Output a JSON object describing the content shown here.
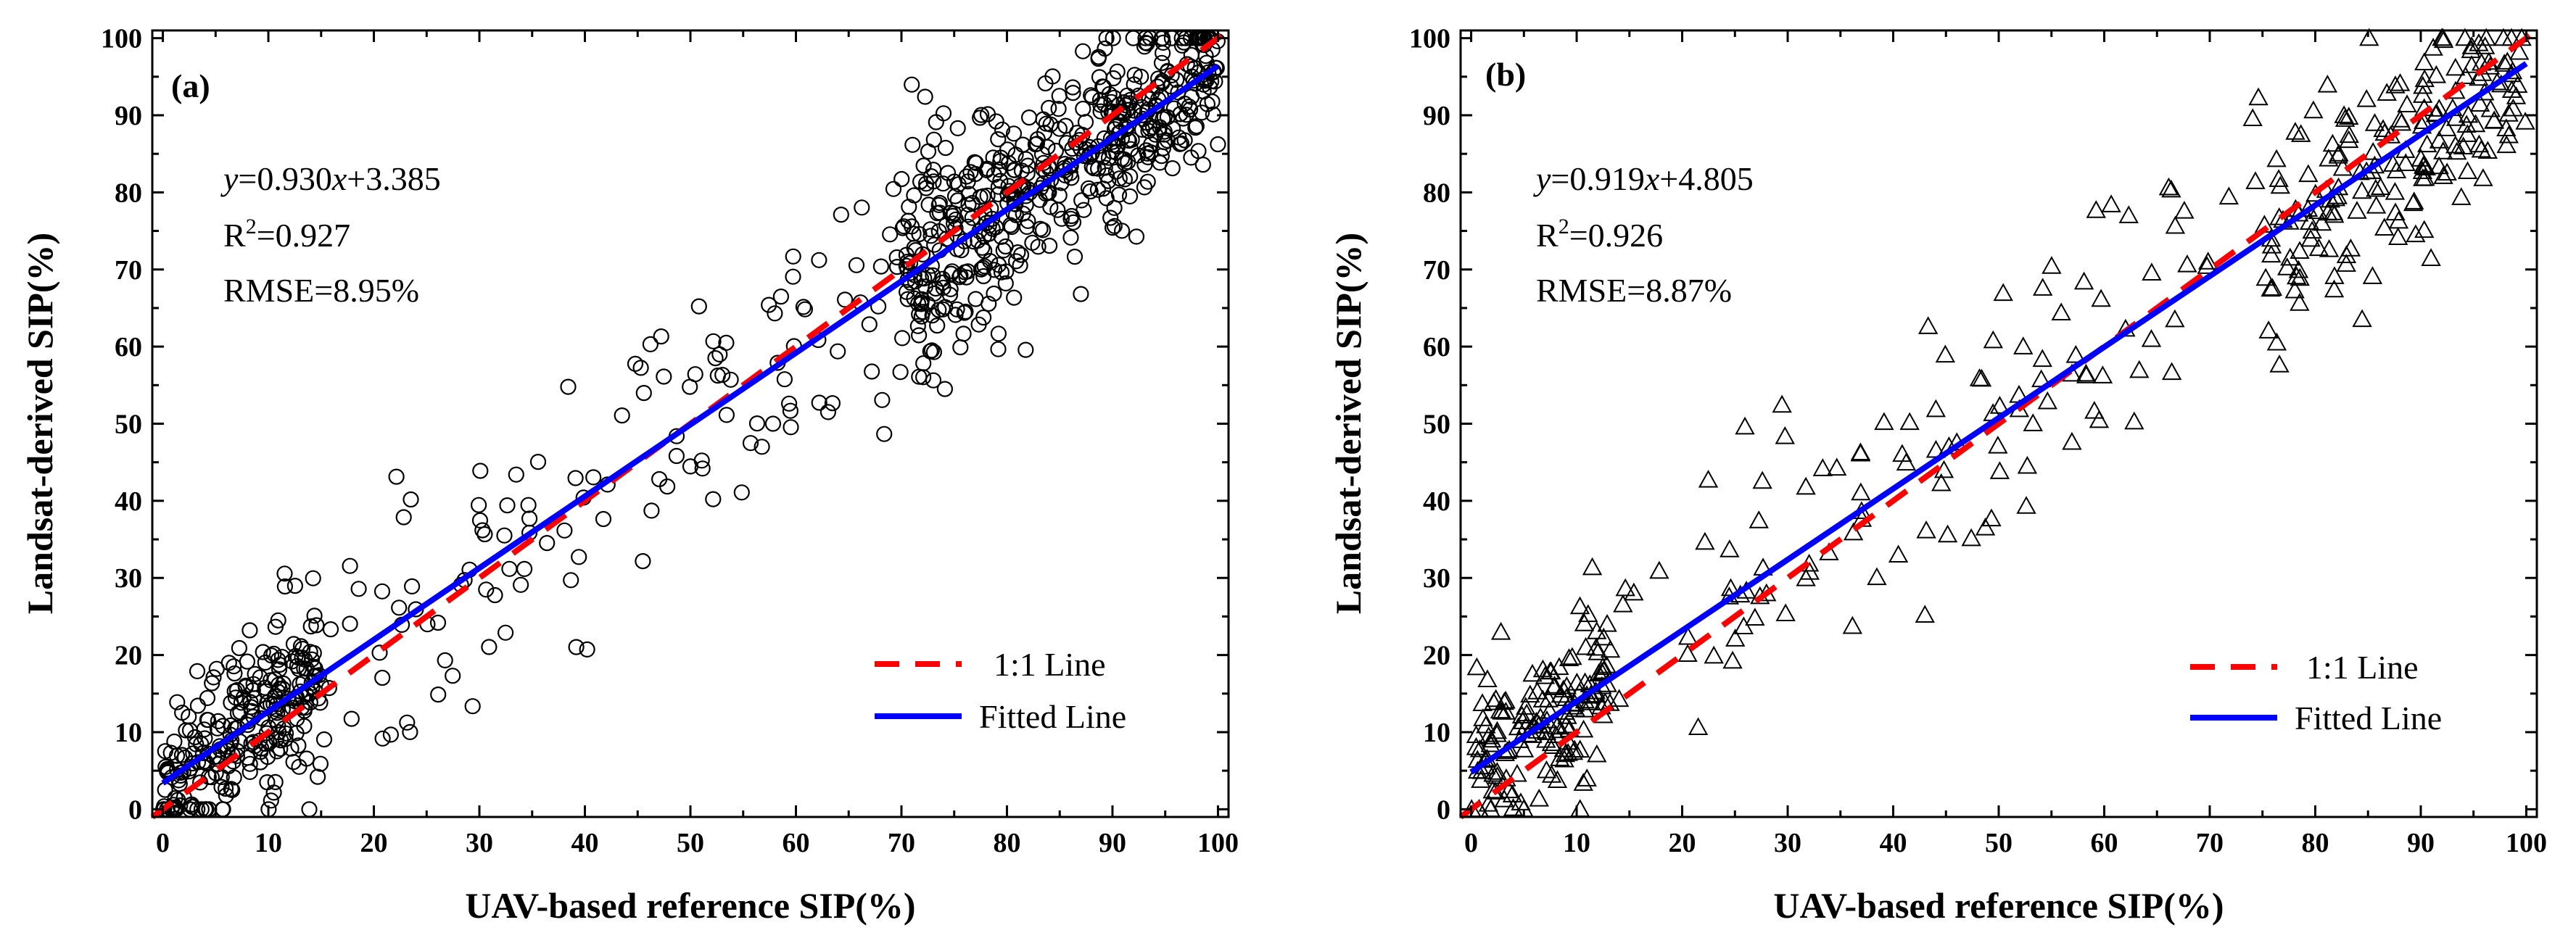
{
  "chart_data": [
    {
      "type": "scatter",
      "panel_label": "(a)",
      "marker": "circle",
      "xlabel": "UAV-based reference SIP(%)",
      "ylabel": "Landsat-derived SIP(%)",
      "xlim": [
        -1,
        101
      ],
      "ylim": [
        -1,
        101
      ],
      "xticks": [
        "0",
        "10",
        "20",
        "30",
        "40",
        "50",
        "60",
        "70",
        "80",
        "90",
        "100"
      ],
      "yticks": [
        "0",
        "10",
        "20",
        "30",
        "40",
        "50",
        "60",
        "70",
        "80",
        "90",
        "100"
      ],
      "fit": {
        "slope": 0.93,
        "intercept": 3.385
      },
      "equation": {
        "var_y": "y",
        "body": "=0.930",
        "var_x": "x",
        "tail": "+3.385"
      },
      "r2": {
        "prefix": "R",
        "sup": "2",
        "value": "=0.927"
      },
      "rmse": "RMSE=8.95%",
      "legend": {
        "one_to_one": "1:1 Line",
        "fitted": "Fitted Line"
      },
      "point_count": 900,
      "noise_sd": 8.95
    },
    {
      "type": "scatter",
      "panel_label": "(b)",
      "marker": "triangle",
      "xlabel": "UAV-based reference SIP(%)",
      "ylabel": "Landsat-derived SIP(%)",
      "xlim": [
        -1,
        101
      ],
      "ylim": [
        -1,
        101
      ],
      "xticks": [
        "0",
        "10",
        "20",
        "30",
        "40",
        "50",
        "60",
        "70",
        "80",
        "90",
        "100"
      ],
      "yticks": [
        "0",
        "10",
        "20",
        "30",
        "40",
        "50",
        "60",
        "70",
        "80",
        "90",
        "100"
      ],
      "fit": {
        "slope": 0.919,
        "intercept": 4.805
      },
      "equation": {
        "var_y": "y",
        "body": "=0.919",
        "var_x": "x",
        "tail": "+4.805"
      },
      "r2": {
        "prefix": "R",
        "sup": "2",
        "value": "=0.926"
      },
      "rmse": "RMSE=8.87%",
      "legend": {
        "one_to_one": "1:1 Line",
        "fitted": "Fitted Line"
      },
      "point_count": 450,
      "noise_sd": 8.87
    }
  ],
  "colors": {
    "one_to_one_line": "#ff0000",
    "fitted_line": "#0000ff",
    "marker": "#000000"
  }
}
